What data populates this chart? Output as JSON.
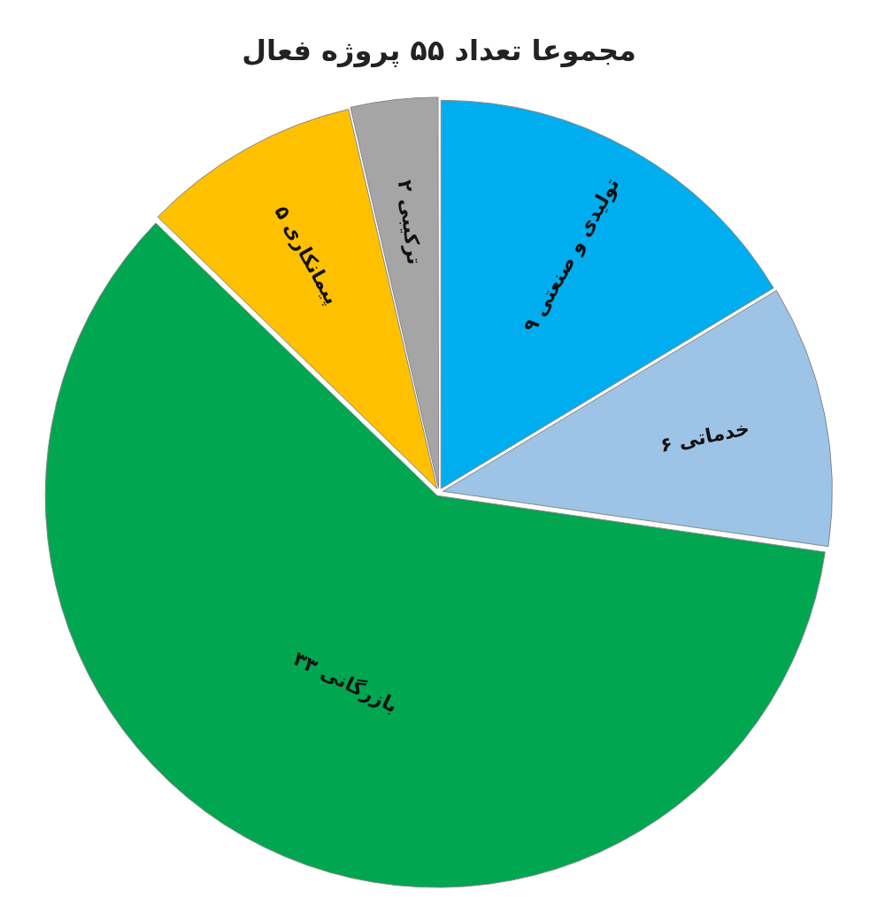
{
  "chart_data": {
    "type": "pie",
    "title": "مجموعا تعداد ۵۵ پروژه فعال",
    "categories": [
      "تولیدی و صنعتی",
      "خدماتی",
      "بازرگانی",
      "پیمانکاری",
      "ترکیبی"
    ],
    "values": [
      9,
      6,
      33,
      5,
      2
    ],
    "value_labels": [
      "۹",
      "۶",
      "۳۳",
      "۵",
      "۲"
    ],
    "colors": [
      "#00adef",
      "#9dc3e6",
      "#00a650",
      "#ffc000",
      "#a5a5a5"
    ],
    "legend": false
  }
}
